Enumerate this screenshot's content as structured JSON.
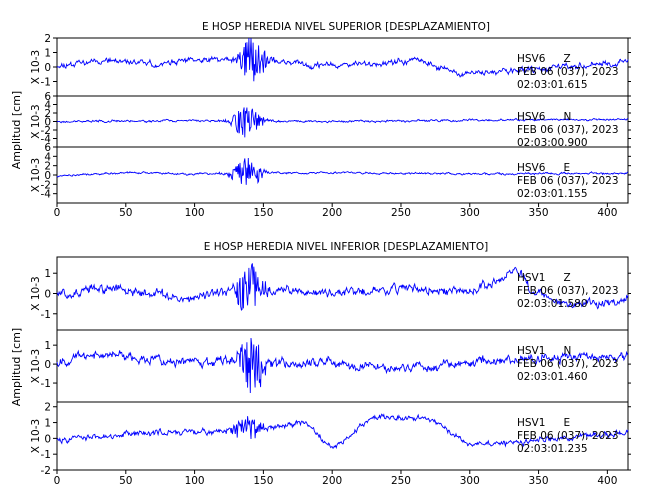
{
  "chart_data": [
    {
      "type": "line",
      "title": "E HOSP HEREDIA NIVEL SUPERIOR [DESPLAZAMIENTO]",
      "ylabel": "Amplitud [cm]",
      "xlim": [
        0,
        415
      ],
      "x_ticks": [
        0,
        50,
        100,
        150,
        200,
        250,
        300,
        350,
        400
      ],
      "color": "#0000ff",
      "traces": [
        {
          "unit_label": "X 10-3",
          "station": "HSV6",
          "component": "Z",
          "date": "FEB 06 (037), 2023",
          "time": "02:03:01.615",
          "ylim": [
            -2,
            2
          ],
          "y_ticks": [
            -1,
            0,
            1,
            2
          ],
          "y_tick_labels": [
            "-1",
            "0",
            "1",
            "2"
          ],
          "seed": 11,
          "noise_amp": 0.42,
          "burst": {
            "center": 142,
            "width": 9,
            "amp": 1.7
          },
          "steps": [],
          "keys": [
            [
              0,
              0.1
            ],
            [
              30,
              0.5
            ],
            [
              70,
              0.2
            ],
            [
              110,
              0.5
            ],
            [
              145,
              0.5
            ],
            [
              190,
              0.1
            ],
            [
              230,
              0.2
            ],
            [
              262,
              0.5
            ],
            [
              292,
              -0.5
            ],
            [
              330,
              -0.3
            ],
            [
              370,
              0.0
            ],
            [
              415,
              0.3
            ]
          ]
        },
        {
          "unit_label": "X 10-3",
          "station": "HSV6",
          "component": "N",
          "date": "FEB 06 (037), 2023",
          "time": "02:03:00.900",
          "ylim": [
            -6,
            6
          ],
          "y_ticks": [
            -4,
            -2,
            0,
            2,
            4,
            6
          ],
          "y_tick_labels": [
            "-4",
            "-2",
            "0",
            "2",
            "4",
            "6"
          ],
          "seed": 23,
          "noise_amp": 0.5,
          "burst": {
            "center": 138,
            "width": 10,
            "amp": 4.2
          },
          "steps": [],
          "keys": [
            [
              0,
              0
            ],
            [
              100,
              0.2
            ],
            [
              200,
              0
            ],
            [
              300,
              0.3
            ],
            [
              415,
              0.5
            ]
          ]
        },
        {
          "unit_label": "X 10-3",
          "station": "HSV6",
          "component": "E",
          "date": "FEB 06 (037), 2023",
          "time": "02:03:01.155",
          "ylim": [
            -6,
            6
          ],
          "y_ticks": [
            -4,
            -2,
            0,
            2,
            4,
            6
          ],
          "y_tick_labels": [
            "-4",
            "-2",
            "0",
            "2",
            "4",
            "6"
          ],
          "seed": 37,
          "noise_amp": 0.45,
          "burst": {
            "center": 138,
            "width": 10,
            "amp": 3.8
          },
          "steps": [],
          "keys": [
            [
              0,
              -0.2
            ],
            [
              50,
              0.5
            ],
            [
              100,
              0.2
            ],
            [
              200,
              0.5
            ],
            [
              300,
              0.2
            ],
            [
              415,
              0.4
            ]
          ]
        }
      ]
    },
    {
      "type": "line",
      "title": "E HOSP HEREDIA NIVEL INFERIOR [DESPLAZAMIENTO]",
      "ylabel": "Amplitud [cm]",
      "xlim": [
        0,
        415
      ],
      "x_ticks": [
        0,
        50,
        100,
        150,
        200,
        250,
        300,
        350,
        400
      ],
      "color": "#0000ff",
      "traces": [
        {
          "unit_label": "X 10-3",
          "station": "HSV1",
          "component": "Z",
          "date": "FEB 06 (037), 2023",
          "time": "02:03:01.580",
          "ylim": [
            -1.8,
            1.8
          ],
          "y_ticks": [
            -1,
            0,
            1
          ],
          "y_tick_labels": [
            "-1",
            "0",
            "1"
          ],
          "seed": 51,
          "noise_amp": 0.45,
          "burst": {
            "center": 140,
            "width": 10,
            "amp": 1.3
          },
          "steps": [],
          "keys": [
            [
              0,
              0
            ],
            [
              40,
              0.3
            ],
            [
              90,
              -0.2
            ],
            [
              150,
              0.2
            ],
            [
              200,
              0
            ],
            [
              260,
              0.3
            ],
            [
              300,
              0
            ],
            [
              325,
              0.8
            ],
            [
              335,
              1.2
            ],
            [
              345,
              0.1
            ],
            [
              370,
              -0.6
            ],
            [
              400,
              -0.4
            ],
            [
              415,
              -0.3
            ]
          ]
        },
        {
          "unit_label": "X 10-3",
          "station": "HSV1",
          "component": "N",
          "date": "FEB 06 (037), 2023",
          "time": "02:03:01.460",
          "ylim": [
            -2,
            1.8
          ],
          "y_ticks": [
            -1,
            0,
            1
          ],
          "y_tick_labels": [
            "-1",
            "0",
            "1"
          ],
          "seed": 67,
          "noise_amp": 0.48,
          "burst": {
            "center": 142,
            "width": 10,
            "amp": 1.5
          },
          "steps": [],
          "keys": [
            [
              0,
              0.2
            ],
            [
              40,
              0.5
            ],
            [
              90,
              0.1
            ],
            [
              150,
              0.1
            ],
            [
              200,
              0.1
            ],
            [
              250,
              -0.3
            ],
            [
              300,
              0.1
            ],
            [
              350,
              0.3
            ],
            [
              415,
              0.4
            ]
          ]
        },
        {
          "unit_label": "X 10-3",
          "station": "HSV1",
          "component": "E",
          "date": "FEB 06 (037), 2023",
          "time": "02:03:01.235",
          "ylim": [
            -2,
            2.3
          ],
          "y_ticks": [
            -2,
            -1,
            0,
            1,
            2
          ],
          "y_tick_labels": [
            "-2",
            "-1",
            "0",
            "1",
            "2"
          ],
          "seed": 83,
          "noise_amp": 0.38,
          "burst": {
            "center": 138,
            "width": 9,
            "amp": 1.0
          },
          "steps": [
            [
              183,
              -0.9
            ],
            [
              230,
              1.6
            ],
            [
              275,
              -1.5
            ],
            [
              305,
              0.5
            ]
          ],
          "keys": [
            [
              0,
              -0.1
            ],
            [
              50,
              0.3
            ],
            [
              100,
              0.4
            ],
            [
              140,
              0.5
            ],
            [
              180,
              1.0
            ],
            [
              200,
              -0.6
            ],
            [
              230,
              1.4
            ],
            [
              270,
              1.3
            ],
            [
              300,
              -0.4
            ],
            [
              350,
              -0.1
            ],
            [
              415,
              0.4
            ]
          ]
        }
      ]
    }
  ]
}
